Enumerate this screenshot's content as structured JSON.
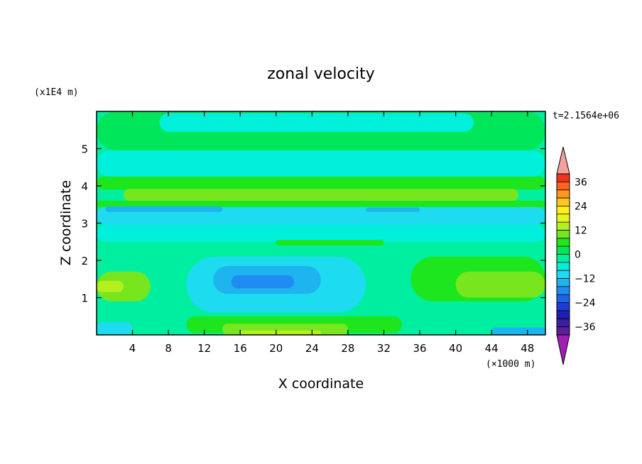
{
  "chart_data": {
    "type": "heatmap",
    "title": "zonal velocity",
    "xlabel": "X coordinate",
    "ylabel": "Z coordinate",
    "x_unit": "(×1000 m)",
    "y_unit": "(x1E4 m)",
    "time_label": "t=2.1564e+06",
    "xlim": [
      0,
      50
    ],
    "ylim": [
      0,
      6
    ],
    "x_ticks": [
      4,
      8,
      12,
      16,
      20,
      24,
      28,
      32,
      36,
      40,
      44,
      48
    ],
    "y_ticks": [
      1,
      2,
      3,
      4,
      5
    ],
    "x_tick_labels": [
      "4",
      "8",
      "12",
      "16",
      "20",
      "24",
      "28",
      "32",
      "36",
      "40",
      "44",
      "48"
    ],
    "y_tick_labels": [
      "1",
      "2",
      "3",
      "4",
      "5"
    ],
    "colorbar": {
      "levels": [
        -40,
        -36,
        -32,
        -28,
        -24,
        -20,
        -16,
        -12,
        -8,
        -4,
        0,
        4,
        8,
        12,
        16,
        20,
        24,
        28,
        32,
        36,
        40
      ],
      "colors": [
        "#5a1e96",
        "#3c1ea0",
        "#1e1eb4",
        "#1e3cd2",
        "#1e64e6",
        "#1e8cf0",
        "#1eb4f0",
        "#1edcf0",
        "#00f0dc",
        "#00eea0",
        "#00e65a",
        "#1ee61e",
        "#78e61e",
        "#b4f01e",
        "#e6f51e",
        "#fff01e",
        "#ffc81e",
        "#ff961e",
        "#ff641e",
        "#f0321e"
      ],
      "over_color": "#f5a0a0",
      "under_color": "#a01eb4",
      "tick_values": [
        36,
        24,
        12,
        0,
        -12,
        -24,
        -36
      ],
      "tick_labels": [
        "36",
        "24",
        "12",
        "0",
        "−12",
        "−24",
        "−36"
      ]
    },
    "field_regions": [
      {
        "x": [
          0,
          50
        ],
        "z": [
          4.95,
          6.0
        ],
        "value": 0
      },
      {
        "x": [
          7,
          42
        ],
        "z": [
          5.45,
          5.95
        ],
        "value": -6
      },
      {
        "x": [
          0,
          50
        ],
        "z": [
          4.25,
          4.95
        ],
        "value": -6
      },
      {
        "x": [
          0,
          50
        ],
        "z": [
          3.9,
          4.25
        ],
        "value": 6
      },
      {
        "x": [
          3,
          47
        ],
        "z": [
          3.6,
          3.92
        ],
        "value": 10
      },
      {
        "x": [
          0,
          50
        ],
        "z": [
          3.43,
          3.6
        ],
        "value": 6
      },
      {
        "x": [
          0,
          50
        ],
        "z": [
          2.95,
          3.43
        ],
        "value": -11
      },
      {
        "x": [
          1,
          14
        ],
        "z": [
          3.3,
          3.45
        ],
        "value": -15
      },
      {
        "x": [
          30,
          36
        ],
        "z": [
          3.3,
          3.42
        ],
        "value": -15
      },
      {
        "x": [
          0,
          50
        ],
        "z": [
          2.5,
          2.95
        ],
        "value": -6
      },
      {
        "x": [
          0,
          50
        ],
        "z": [
          2.15,
          2.5
        ],
        "value": -2
      },
      {
        "x": [
          20,
          32
        ],
        "z": [
          2.4,
          2.55
        ],
        "value": 4
      },
      {
        "x": [
          10,
          30
        ],
        "z": [
          0.6,
          2.1
        ],
        "value": -10
      },
      {
        "x": [
          13,
          25
        ],
        "z": [
          1.1,
          1.85
        ],
        "value": -15
      },
      {
        "x": [
          15,
          22
        ],
        "z": [
          1.25,
          1.6
        ],
        "value": -19
      },
      {
        "x": [
          0,
          6
        ],
        "z": [
          0.9,
          1.7
        ],
        "value": 8
      },
      {
        "x": [
          0,
          3
        ],
        "z": [
          1.15,
          1.45
        ],
        "value": 12
      },
      {
        "x": [
          35,
          50
        ],
        "z": [
          0.9,
          2.1
        ],
        "value": 6
      },
      {
        "x": [
          40,
          50
        ],
        "z": [
          1.0,
          1.7
        ],
        "value": 10
      },
      {
        "x": [
          10,
          34
        ],
        "z": [
          0.05,
          0.5
        ],
        "value": 4
      },
      {
        "x": [
          14,
          28
        ],
        "z": [
          0.0,
          0.3
        ],
        "value": 9
      },
      {
        "x": [
          16,
          25
        ],
        "z": [
          0.0,
          0.12
        ],
        "value": 14
      },
      {
        "x": [
          0,
          4
        ],
        "z": [
          0.0,
          0.35
        ],
        "value": -10
      },
      {
        "x": [
          44,
          50
        ],
        "z": [
          0.0,
          0.2
        ],
        "value": -14
      }
    ]
  }
}
